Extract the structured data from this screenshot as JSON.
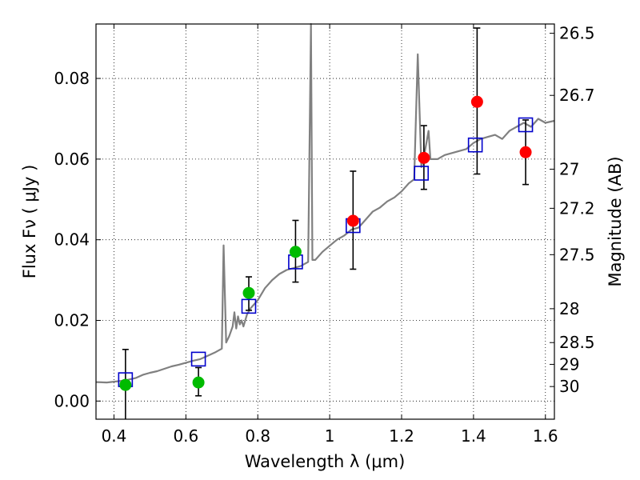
{
  "chart_data": {
    "type": "scatter",
    "xlabel": "Wavelength  λ (μm)",
    "ylabel": "Flux  Fν  ( μJy )",
    "y2label": "Magnitude (AB)",
    "xlim": [
      0.35,
      1.625
    ],
    "ylim": [
      -0.0045,
      0.0935
    ],
    "grid": true,
    "xticks": [
      {
        "value": 0.4,
        "label": "0.4"
      },
      {
        "value": 0.6,
        "label": "0.6"
      },
      {
        "value": 0.8,
        "label": "0.8"
      },
      {
        "value": 1.0,
        "label": "1"
      },
      {
        "value": 1.2,
        "label": "1.2"
      },
      {
        "value": 1.4,
        "label": "1.4"
      },
      {
        "value": 1.6,
        "label": "1.6"
      }
    ],
    "yticks": [
      {
        "value": 0.0,
        "label": "0.00"
      },
      {
        "value": 0.02,
        "label": "0.02"
      },
      {
        "value": 0.04,
        "label": "0.04"
      },
      {
        "value": 0.06,
        "label": "0.06"
      },
      {
        "value": 0.08,
        "label": "0.08"
      }
    ],
    "y2ticks": [
      {
        "flux": 0.0912,
        "label": "26.5"
      },
      {
        "flux": 0.0758,
        "label": "26.7"
      },
      {
        "flux": 0.0575,
        "label": "27"
      },
      {
        "flux": 0.0478,
        "label": "27.2"
      },
      {
        "flux": 0.0363,
        "label": "27.5"
      },
      {
        "flux": 0.0229,
        "label": "28"
      },
      {
        "flux": 0.0145,
        "label": "28.5"
      },
      {
        "flux": 0.0091,
        "label": "29"
      },
      {
        "flux": 0.0036,
        "label": "30"
      }
    ],
    "model_spectrum": {
      "color": "#808080",
      "points": [
        [
          0.35,
          0.0047
        ],
        [
          0.38,
          0.0046
        ],
        [
          0.4,
          0.0048
        ],
        [
          0.42,
          0.005
        ],
        [
          0.44,
          0.0053
        ],
        [
          0.46,
          0.0057
        ],
        [
          0.48,
          0.0065
        ],
        [
          0.5,
          0.007
        ],
        [
          0.52,
          0.0074
        ],
        [
          0.54,
          0.008
        ],
        [
          0.56,
          0.0086
        ],
        [
          0.58,
          0.009
        ],
        [
          0.6,
          0.0095
        ],
        [
          0.62,
          0.01
        ],
        [
          0.64,
          0.0104
        ],
        [
          0.66,
          0.0112
        ],
        [
          0.68,
          0.012
        ],
        [
          0.7,
          0.013
        ],
        [
          0.705,
          0.0386
        ],
        [
          0.712,
          0.0145
        ],
        [
          0.72,
          0.016
        ],
        [
          0.73,
          0.0185
        ],
        [
          0.735,
          0.022
        ],
        [
          0.74,
          0.018
        ],
        [
          0.745,
          0.021
        ],
        [
          0.75,
          0.019
        ],
        [
          0.755,
          0.02
        ],
        [
          0.76,
          0.0185
        ],
        [
          0.77,
          0.0215
        ],
        [
          0.78,
          0.023
        ],
        [
          0.8,
          0.025
        ],
        [
          0.82,
          0.028
        ],
        [
          0.84,
          0.03
        ],
        [
          0.86,
          0.0315
        ],
        [
          0.88,
          0.0325
        ],
        [
          0.9,
          0.033
        ],
        [
          0.92,
          0.0335
        ],
        [
          0.94,
          0.0345
        ],
        [
          0.948,
          0.0935
        ],
        [
          0.952,
          0.035
        ],
        [
          0.96,
          0.035
        ],
        [
          0.98,
          0.037
        ],
        [
          1.0,
          0.0385
        ],
        [
          1.02,
          0.04
        ],
        [
          1.04,
          0.041
        ],
        [
          1.06,
          0.0425
        ],
        [
          1.08,
          0.043
        ],
        [
          1.1,
          0.045
        ],
        [
          1.12,
          0.047
        ],
        [
          1.14,
          0.048
        ],
        [
          1.16,
          0.0495
        ],
        [
          1.18,
          0.0505
        ],
        [
          1.2,
          0.052
        ],
        [
          1.22,
          0.054
        ],
        [
          1.235,
          0.055
        ],
        [
          1.245,
          0.086
        ],
        [
          1.255,
          0.058
        ],
        [
          1.265,
          0.062
        ],
        [
          1.275,
          0.067
        ],
        [
          1.28,
          0.06
        ],
        [
          1.3,
          0.06
        ],
        [
          1.32,
          0.061
        ],
        [
          1.34,
          0.0615
        ],
        [
          1.36,
          0.062
        ],
        [
          1.38,
          0.0625
        ],
        [
          1.4,
          0.064
        ],
        [
          1.42,
          0.065
        ],
        [
          1.44,
          0.0655
        ],
        [
          1.46,
          0.066
        ],
        [
          1.48,
          0.065
        ],
        [
          1.5,
          0.067
        ],
        [
          1.52,
          0.068
        ],
        [
          1.54,
          0.069
        ],
        [
          1.56,
          0.068
        ],
        [
          1.58,
          0.07
        ],
        [
          1.6,
          0.069
        ],
        [
          1.625,
          0.0695
        ]
      ]
    },
    "model_photometry": {
      "color": "#0000cc",
      "points": [
        [
          0.432,
          0.0053
        ],
        [
          0.635,
          0.0104
        ],
        [
          0.775,
          0.0235
        ],
        [
          0.905,
          0.0345
        ],
        [
          1.065,
          0.0435
        ],
        [
          1.255,
          0.0565
        ],
        [
          1.405,
          0.0635
        ],
        [
          1.545,
          0.0685
        ]
      ]
    },
    "errorbars": [
      {
        "x": 0.432,
        "low": -0.0045,
        "high": 0.0128
      },
      {
        "x": 0.635,
        "low": 0.0013,
        "high": 0.0083
      },
      {
        "x": 0.775,
        "low": 0.0225,
        "high": 0.0308
      },
      {
        "x": 0.905,
        "low": 0.0295,
        "high": 0.0448
      },
      {
        "x": 1.065,
        "low": 0.0327,
        "high": 0.057
      },
      {
        "x": 1.262,
        "low": 0.0525,
        "high": 0.0683
      },
      {
        "x": 1.41,
        "low": 0.0563,
        "high": 0.0925
      },
      {
        "x": 1.545,
        "low": 0.0537,
        "high": 0.0697
      }
    ],
    "observed_optical": {
      "color": "#00bb00",
      "points": [
        [
          0.432,
          0.004
        ],
        [
          0.635,
          0.0046
        ],
        [
          0.775,
          0.0268
        ],
        [
          0.905,
          0.037
        ]
      ]
    },
    "observed_nir": {
      "color": "#ff0000",
      "points": [
        [
          1.065,
          0.0447
        ],
        [
          1.262,
          0.0603
        ],
        [
          1.41,
          0.0742
        ],
        [
          1.545,
          0.0617
        ]
      ]
    }
  }
}
